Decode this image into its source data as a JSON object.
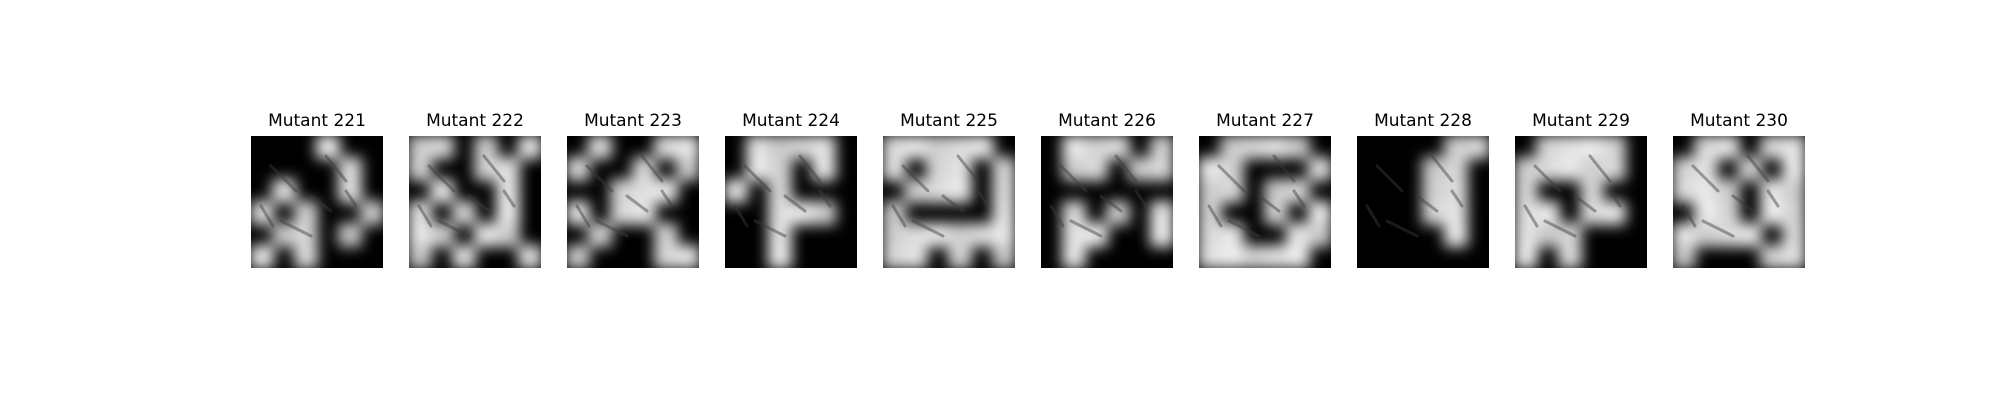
{
  "figure": {
    "panels": [
      {
        "title": "Mutant 221",
        "mask": [
          [
            0,
            0,
            0,
            1,
            0,
            0
          ],
          [
            0,
            0,
            0,
            0,
            1,
            0
          ],
          [
            0,
            1,
            0,
            0,
            1,
            0
          ],
          [
            1,
            0,
            1,
            0,
            0,
            1
          ],
          [
            0,
            1,
            1,
            0,
            1,
            0
          ],
          [
            1,
            0,
            1,
            0,
            0,
            0
          ]
        ]
      },
      {
        "title": "Mutant 222",
        "mask": [
          [
            1,
            1,
            0,
            1,
            0,
            1
          ],
          [
            1,
            0,
            0,
            1,
            1,
            0
          ],
          [
            0,
            1,
            0,
            0,
            1,
            0
          ],
          [
            1,
            0,
            1,
            0,
            1,
            0
          ],
          [
            1,
            1,
            0,
            1,
            1,
            0
          ],
          [
            1,
            0,
            1,
            0,
            0,
            1
          ]
        ]
      },
      {
        "title": "Mutant 223",
        "mask": [
          [
            0,
            1,
            0,
            0,
            1,
            1
          ],
          [
            1,
            0,
            0,
            1,
            0,
            1
          ],
          [
            0,
            0,
            1,
            1,
            1,
            0
          ],
          [
            1,
            0,
            1,
            1,
            0,
            0
          ],
          [
            0,
            1,
            0,
            0,
            1,
            0
          ],
          [
            1,
            0,
            0,
            0,
            1,
            1
          ]
        ]
      },
      {
        "title": "Mutant 224",
        "mask": [
          [
            0,
            1,
            1,
            1,
            1,
            0
          ],
          [
            0,
            1,
            1,
            0,
            1,
            0
          ],
          [
            1,
            0,
            1,
            0,
            0,
            0
          ],
          [
            0,
            0,
            1,
            1,
            1,
            0
          ],
          [
            0,
            0,
            1,
            0,
            0,
            0
          ],
          [
            0,
            0,
            1,
            0,
            0,
            0
          ]
        ]
      },
      {
        "title": "Mutant 225",
        "mask": [
          [
            1,
            1,
            1,
            1,
            1,
            0
          ],
          [
            1,
            0,
            1,
            1,
            0,
            1
          ],
          [
            0,
            1,
            1,
            1,
            0,
            1
          ],
          [
            1,
            0,
            0,
            0,
            0,
            1
          ],
          [
            1,
            1,
            1,
            1,
            1,
            1
          ],
          [
            1,
            1,
            0,
            1,
            0,
            1
          ]
        ]
      },
      {
        "title": "Mutant 226",
        "mask": [
          [
            0,
            1,
            1,
            1,
            0,
            1
          ],
          [
            0,
            1,
            1,
            0,
            1,
            1
          ],
          [
            0,
            0,
            0,
            0,
            0,
            0
          ],
          [
            0,
            1,
            0,
            1,
            0,
            1
          ],
          [
            0,
            1,
            1,
            0,
            0,
            1
          ],
          [
            0,
            1,
            0,
            0,
            0,
            0
          ]
        ]
      },
      {
        "title": "Mutant 227",
        "mask": [
          [
            0,
            1,
            1,
            1,
            1,
            0
          ],
          [
            1,
            1,
            0,
            0,
            0,
            1
          ],
          [
            1,
            1,
            0,
            1,
            1,
            0
          ],
          [
            1,
            0,
            0,
            1,
            0,
            1
          ],
          [
            1,
            1,
            0,
            0,
            1,
            1
          ],
          [
            1,
            1,
            1,
            1,
            1,
            0
          ]
        ]
      },
      {
        "title": "Mutant 228",
        "mask": [
          [
            0,
            0,
            0,
            0,
            1,
            1
          ],
          [
            0,
            0,
            0,
            1,
            1,
            0
          ],
          [
            0,
            0,
            0,
            1,
            1,
            0
          ],
          [
            0,
            0,
            0,
            1,
            1,
            0
          ],
          [
            0,
            0,
            0,
            0,
            1,
            0
          ],
          [
            0,
            0,
            0,
            0,
            0,
            0
          ]
        ]
      },
      {
        "title": "Mutant 229",
        "mask": [
          [
            0,
            1,
            1,
            1,
            1,
            0
          ],
          [
            1,
            1,
            1,
            1,
            1,
            0
          ],
          [
            1,
            0,
            0,
            1,
            0,
            0
          ],
          [
            1,
            1,
            0,
            1,
            1,
            0
          ],
          [
            1,
            1,
            1,
            0,
            0,
            0
          ],
          [
            1,
            0,
            1,
            0,
            0,
            0
          ]
        ]
      },
      {
        "title": "Mutant 230",
        "mask": [
          [
            0,
            1,
            1,
            0,
            1,
            1
          ],
          [
            1,
            1,
            0,
            1,
            0,
            1
          ],
          [
            1,
            1,
            1,
            0,
            1,
            1
          ],
          [
            0,
            1,
            1,
            0,
            1,
            1
          ],
          [
            1,
            1,
            1,
            1,
            0,
            1
          ],
          [
            1,
            0,
            0,
            0,
            1,
            1
          ]
        ]
      }
    ]
  }
}
